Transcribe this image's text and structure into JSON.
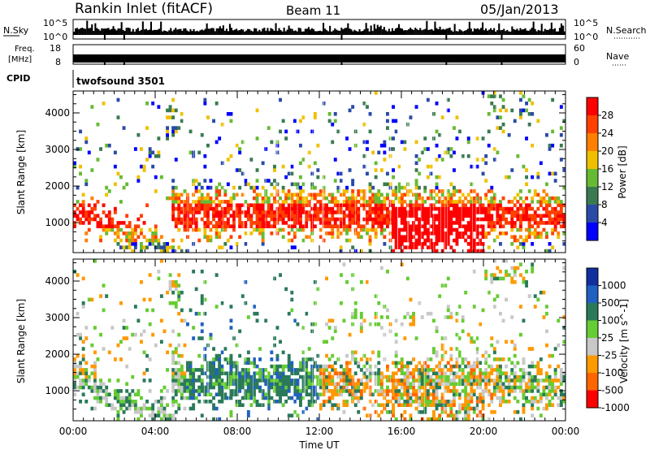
{
  "header": {
    "station": "Rankin Inlet (fitACF)",
    "beam": "Beam 11",
    "date": "05/Jan/2013"
  },
  "noise_panel": {
    "left_label": "N.Sky",
    "left_ticks": [
      "10^5",
      "10^0"
    ],
    "right_label": "N.Search",
    "right_ticks": [
      "10^5",
      "10^0"
    ]
  },
  "freq_panel": {
    "left_label_1": "Freq.",
    "left_label_2": "[MHz]",
    "left_ticks": [
      "18",
      "8"
    ],
    "right_label": "Nave",
    "right_ticks": [
      "60",
      "0"
    ]
  },
  "cpid": {
    "label": "CPID",
    "value": "twofsound 3501"
  },
  "chart_data": [
    {
      "type": "heatmap",
      "panel": "power",
      "xlabel": "Time UT",
      "ylabel": "Slant Range [km]",
      "xticks": [
        "00:00",
        "04:00",
        "08:00",
        "12:00",
        "16:00",
        "20:00",
        "00:00"
      ],
      "yticks": [
        1000,
        2000,
        3000,
        4000
      ],
      "xlim_hours": [
        0,
        24
      ],
      "ylim": [
        180,
        4600
      ],
      "colorbar_label": "Power [dB]",
      "colorbar_ticks": [
        4,
        8,
        12,
        16,
        20,
        24,
        28
      ],
      "colors": [
        "#0000ff",
        "#2a4aa8",
        "#3a7a50",
        "#66bb33",
        "#f0c000",
        "#ff8000",
        "#ff4000",
        "#ff0000"
      ]
    },
    {
      "type": "heatmap",
      "panel": "velocity",
      "xlabel": "Time UT",
      "ylabel": "Slant Range [km]",
      "xticks": [
        "00:00",
        "04:00",
        "08:00",
        "12:00",
        "16:00",
        "20:00",
        "00:00"
      ],
      "yticks": [
        1000,
        2000,
        3000,
        4000
      ],
      "xlim_hours": [
        0,
        24
      ],
      "ylim": [
        180,
        4600
      ],
      "colorbar_label": "Velocity [m s^-1]",
      "colorbar_ticks": [
        1000,
        500,
        100,
        25,
        -25,
        -100,
        -500,
        -1000
      ],
      "colors": [
        "#1030a0",
        "#2060c0",
        "#2a7a5a",
        "#66cc33",
        "#c8c8c8",
        "#ff9900",
        "#ff6600",
        "#ff0000"
      ]
    }
  ]
}
